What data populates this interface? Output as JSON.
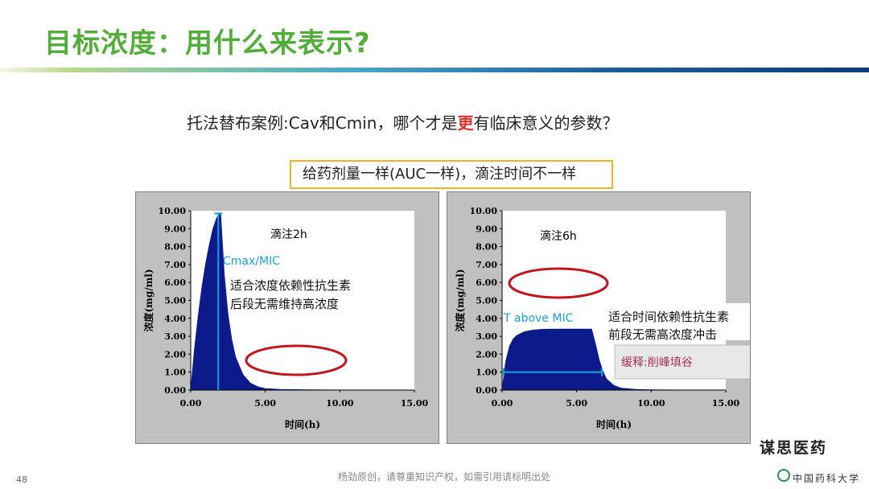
{
  "slide": {
    "title": "目标浓度：用什么来表示?",
    "question_pre": "托法替布案例:Cav和Cmin，哪个才是",
    "question_em": "更",
    "question_post": "有临床意义的参数？",
    "note": "给药剂量一样(AUC一样)，滴注时间不一样",
    "page_number": "48",
    "footer": "杨劲原创，请尊重知识产权，如需引用请标明出处",
    "watermark": "谋思医药",
    "university": "中国药科大学"
  },
  "colors": {
    "title": "#52ad3a",
    "fill": "#0d1a8c",
    "marker": "#19a3d4",
    "ellipse": "#c0161d",
    "panel": "#c0c0c0",
    "highlight_text": "#a8325a"
  },
  "chart_data": [
    {
      "type": "area",
      "ylabel": "浓度(mg/ml)",
      "xlabel": "时间(h)",
      "xlim": [
        0,
        15
      ],
      "ylim": [
        0,
        10
      ],
      "xticks": [
        "0.00",
        "5.00",
        "10.00",
        "15.00"
      ],
      "yticks": [
        "0.00",
        "1.00",
        "2.00",
        "3.00",
        "4.00",
        "5.00",
        "6.00",
        "7.00",
        "8.00",
        "9.00",
        "10.00"
      ],
      "grid": false,
      "series": [
        {
          "x": [
            0,
            0.25,
            0.5,
            0.75,
            1.0,
            1.25,
            1.5,
            1.75,
            2.0,
            2.25,
            2.5,
            2.75,
            3.0,
            3.5,
            4.0,
            4.5,
            5.0,
            6.0,
            8.0,
            10.0,
            12.0
          ],
          "y": [
            0,
            2.2,
            4.1,
            5.7,
            7.0,
            8.1,
            9.0,
            9.6,
            9.85,
            6.4,
            4.2,
            2.8,
            1.85,
            0.85,
            0.38,
            0.18,
            0.08,
            0.03,
            0.01,
            0.0,
            0.0
          ]
        }
      ],
      "annotations": {
        "infusion": "滴注2h",
        "marker_label": "Cmax/MIC",
        "marker_x": 1.85,
        "marker_y": 9.85,
        "comment_line1": "适合浓度依赖性抗生素",
        "comment_line2": "后段无需维持高浓度"
      }
    },
    {
      "type": "area",
      "ylabel": "浓度(mg/ml)",
      "xlabel": "时间(h)",
      "xlim": [
        0,
        15
      ],
      "ylim": [
        0,
        10
      ],
      "xticks": [
        "0.00",
        "5.00",
        "10.00",
        "15.00"
      ],
      "yticks": [
        "0.00",
        "1.00",
        "2.00",
        "3.00",
        "4.00",
        "5.00",
        "6.00",
        "7.00",
        "8.00",
        "9.00",
        "10.00"
      ],
      "grid": false,
      "series": [
        {
          "x": [
            0,
            0.25,
            0.5,
            0.75,
            1.0,
            1.5,
            2.0,
            2.5,
            3.0,
            4.0,
            5.0,
            6.0,
            6.25,
            6.5,
            6.75,
            7.0,
            7.5,
            8.0,
            9.0,
            10.0,
            12.0
          ],
          "y": [
            0,
            1.6,
            2.45,
            2.85,
            3.05,
            3.25,
            3.33,
            3.37,
            3.39,
            3.4,
            3.4,
            3.4,
            2.6,
            1.7,
            1.05,
            0.62,
            0.25,
            0.1,
            0.03,
            0.01,
            0.0
          ]
        }
      ],
      "annotations": {
        "infusion": "滴注6h",
        "marker_label": "T above MIC",
        "mic_level": 1.0,
        "mic_x_start": 0.1,
        "mic_x_end": 6.7,
        "comment_line1": "适合时间依赖性抗生素",
        "comment_line2": "前段无需高浓度冲击",
        "slow_release": "缓释:削峰填谷"
      }
    }
  ]
}
